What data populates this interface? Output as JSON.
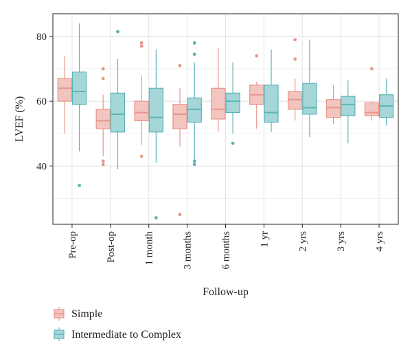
{
  "chart_data": {
    "type": "boxplot",
    "title": "",
    "xlabel": "Follow-up",
    "ylabel": "LVEF (%)",
    "ylim": [
      22,
      87
    ],
    "yticks": [
      40,
      60,
      80
    ],
    "grid": true,
    "legend_position": "bottom-left",
    "categories": [
      "Pre-op",
      "Post-op",
      "1 month",
      "3 months",
      "6 months",
      "1 yr",
      "2 yrs",
      "3 yrs",
      "4 yrs"
    ],
    "series": [
      {
        "name": "Simple",
        "color": "#E8958C",
        "boxes": [
          {
            "whislo": 50,
            "q1": 60,
            "med": 64,
            "q3": 67,
            "whishi": 74,
            "fliers": []
          },
          {
            "whislo": 43,
            "q1": 51.5,
            "med": 54,
            "q3": 57.5,
            "whishi": 62,
            "fliers": [
              70,
              67,
              41.5,
              40.5
            ]
          },
          {
            "whislo": 46.5,
            "q1": 54,
            "med": 56.5,
            "q3": 60,
            "whishi": 68,
            "fliers": [
              78,
              77,
              43
            ]
          },
          {
            "whislo": 46,
            "q1": 51.5,
            "med": 56,
            "q3": 59,
            "whishi": 64,
            "fliers": [
              71,
              25
            ]
          },
          {
            "whislo": 50.5,
            "q1": 54.5,
            "med": 57.5,
            "q3": 64,
            "whishi": 76.5,
            "fliers": []
          },
          {
            "whislo": 51.5,
            "q1": 59,
            "med": 62,
            "q3": 65,
            "whishi": 66,
            "fliers": [
              74
            ]
          },
          {
            "whislo": 54,
            "q1": 57.5,
            "med": 60.5,
            "q3": 63,
            "whishi": 67,
            "fliers": [
              79,
              73
            ]
          },
          {
            "whislo": 53,
            "q1": 55,
            "med": 58,
            "q3": 60.5,
            "whishi": 65,
            "fliers": []
          },
          {
            "whislo": 54,
            "q1": 55.5,
            "med": 56.5,
            "q3": 59.5,
            "whishi": 60,
            "fliers": [
              70
            ]
          }
        ]
      },
      {
        "name": "Intermediate to Complex",
        "color": "#5BB5B8",
        "boxes": [
          {
            "whislo": 44.5,
            "q1": 59,
            "med": 63,
            "q3": 69,
            "whishi": 84,
            "fliers": [
              34
            ]
          },
          {
            "whislo": 39,
            "q1": 50.5,
            "med": 56,
            "q3": 62.5,
            "whishi": 73,
            "fliers": [
              81.5
            ]
          },
          {
            "whislo": 41,
            "q1": 50.5,
            "med": 55,
            "q3": 64,
            "whishi": 76,
            "fliers": [
              24
            ]
          },
          {
            "whislo": 42,
            "q1": 53.5,
            "med": 57.5,
            "q3": 61,
            "whishi": 72,
            "fliers": [
              78,
              74.5,
              41.5,
              40.5
            ]
          },
          {
            "whislo": 50,
            "q1": 56.5,
            "med": 60,
            "q3": 62.5,
            "whishi": 72,
            "fliers": [
              47
            ]
          },
          {
            "whislo": 50.5,
            "q1": 53.5,
            "med": 56.5,
            "q3": 65,
            "whishi": 76,
            "fliers": []
          },
          {
            "whislo": 49,
            "q1": 56,
            "med": 58,
            "q3": 65.5,
            "whishi": 79,
            "fliers": []
          },
          {
            "whislo": 47,
            "q1": 55.5,
            "med": 59,
            "q3": 61.5,
            "whishi": 66.5,
            "fliers": []
          },
          {
            "whislo": 52.5,
            "q1": 55,
            "med": 58.5,
            "q3": 62,
            "whishi": 67,
            "fliers": []
          }
        ]
      }
    ]
  }
}
